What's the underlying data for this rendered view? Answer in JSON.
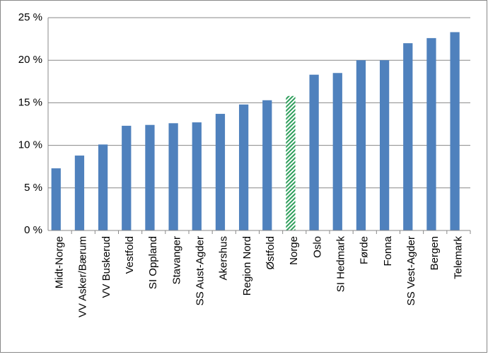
{
  "chart_data": {
    "type": "bar",
    "categories": [
      "Midt-Norge",
      "VV Asker/Bærum",
      "VV Buskerud",
      "Vestfold",
      "SI Oppland",
      "Stavanger",
      "SS Aust-Agder",
      "Akershus",
      "Region Nord",
      "Østfold",
      "Norge",
      "Oslo",
      "SI Hedmark",
      "Førde",
      "Fonna",
      "SS Vest-Agder",
      "Bergen",
      "Telemark"
    ],
    "values": [
      7.3,
      8.8,
      10.1,
      12.3,
      12.4,
      12.6,
      12.7,
      13.7,
      14.8,
      15.3,
      15.8,
      18.3,
      18.5,
      20.0,
      20.0,
      22.0,
      22.6,
      23.3
    ],
    "colors": [
      "#4f81bd",
      "#4f81bd",
      "#4f81bd",
      "#4f81bd",
      "#4f81bd",
      "#4f81bd",
      "#4f81bd",
      "#4f81bd",
      "#4f81bd",
      "#4f81bd",
      "#2e9e5b",
      "#4f81bd",
      "#4f81bd",
      "#4f81bd",
      "#4f81bd",
      "#4f81bd",
      "#4f81bd",
      "#4f81bd"
    ],
    "hatched": [
      false,
      false,
      false,
      false,
      false,
      false,
      false,
      false,
      false,
      false,
      true,
      false,
      false,
      false,
      false,
      false,
      false,
      false
    ],
    "ylim": [
      0,
      25
    ],
    "yticks": [
      {
        "value": 0,
        "label": "0 %"
      },
      {
        "value": 5,
        "label": "5 %"
      },
      {
        "value": 10,
        "label": "10 %"
      },
      {
        "value": 15,
        "label": "15 %"
      },
      {
        "value": 20,
        "label": "20 %"
      },
      {
        "value": 25,
        "label": "25 %"
      }
    ],
    "grid": true
  }
}
